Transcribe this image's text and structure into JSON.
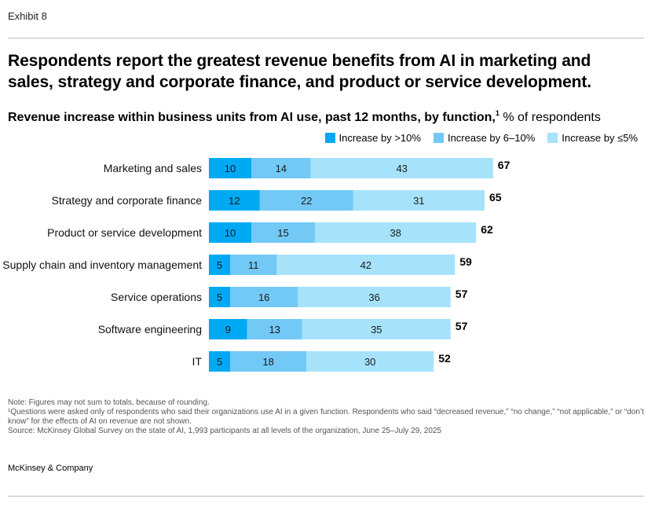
{
  "exhibit": "Exhibit 8",
  "headline": "Respondents report the greatest revenue benefits from AI in marketing and sales, strategy and corporate finance, and product or service development.",
  "subtitle": {
    "main": "Revenue increase within business units from AI use, past 12 months, by function,",
    "footnote_marker": "1",
    "unit": " % of respondents"
  },
  "colors": {
    "gt10": "#00a9f4",
    "6to10": "#73c9f6",
    "le5": "#a6e3fb"
  },
  "legend": [
    {
      "label": "Increase by >10%",
      "color": "#00a9f4"
    },
    {
      "label": "Increase by 6–10%",
      "color": "#73c9f6"
    },
    {
      "label": "Increase by ≤5%",
      "color": "#a6e3fb"
    }
  ],
  "chart_data": {
    "type": "bar",
    "orientation": "horizontal",
    "stacked": true,
    "categories": [
      "Marketing and sales",
      "Strategy and corporate finance",
      "Product or service development",
      "Supply chain and inventory management",
      "Service operations",
      "Software engineering",
      "IT"
    ],
    "series": [
      {
        "name": "Increase by >10%",
        "values": [
          10,
          12,
          10,
          5,
          5,
          9,
          5
        ]
      },
      {
        "name": "Increase by 6–10%",
        "values": [
          14,
          22,
          15,
          11,
          16,
          13,
          18
        ]
      },
      {
        "name": "Increase by ≤5%",
        "values": [
          43,
          31,
          38,
          42,
          36,
          35,
          30
        ]
      }
    ],
    "totals": [
      67,
      65,
      62,
      59,
      57,
      57,
      52
    ],
    "xlim": [
      0,
      100
    ],
    "grid": false,
    "legend_position": "top-right"
  },
  "notes": {
    "note": "Note: Figures may not sum to totals, because of rounding.",
    "footnote": "¹Questions were asked only of respondents who said their organizations use AI in a given function. Respondents who said “decreased revenue,” “no change,” “not applicable,” or “don’t know” for the effects of AI on revenue are not shown.",
    "source": "Source: McKinsey Global Survey on the state of AI, 1,993 participants at all levels of the organization, June 25–July 29, 2025"
  },
  "brand": "McKinsey & Company"
}
